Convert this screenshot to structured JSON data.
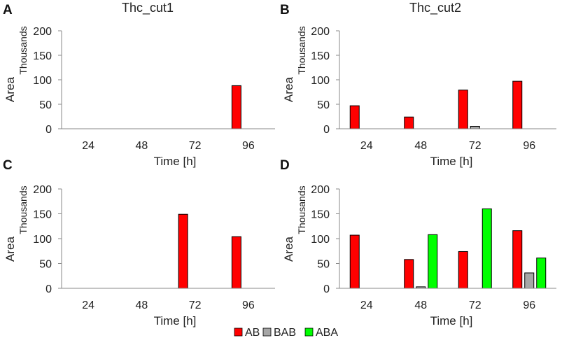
{
  "chart_data": [
    {
      "panel": "A",
      "title": "Thc_cut1",
      "type": "bar",
      "xlabel": "Time [h]",
      "ylabel": "Area",
      "yunit": "Thousands",
      "categories": [
        "24",
        "48",
        "72",
        "96"
      ],
      "ylim": [
        0,
        200
      ],
      "yticks": [
        "0",
        "50",
        "100",
        "150",
        "200"
      ],
      "series": [
        {
          "name": "AB",
          "values": [
            0,
            0,
            0,
            88
          ]
        },
        {
          "name": "BAB",
          "values": [
            0,
            0,
            0,
            0
          ]
        },
        {
          "name": "ABA",
          "values": [
            0,
            0,
            0,
            0
          ]
        }
      ]
    },
    {
      "panel": "B",
      "title": "Thc_cut2",
      "type": "bar",
      "xlabel": "Time [h]",
      "ylabel": "Area",
      "yunit": "Thousands",
      "categories": [
        "24",
        "48",
        "72",
        "96"
      ],
      "ylim": [
        0,
        200
      ],
      "yticks": [
        "0",
        "50",
        "100",
        "150",
        "200"
      ],
      "series": [
        {
          "name": "AB",
          "values": [
            47,
            24,
            79,
            97
          ]
        },
        {
          "name": "BAB",
          "values": [
            0,
            0,
            5,
            0
          ]
        },
        {
          "name": "ABA",
          "values": [
            0,
            0,
            0,
            0
          ]
        }
      ]
    },
    {
      "panel": "C",
      "title": "",
      "type": "bar",
      "xlabel": "Time [h]",
      "ylabel": "Area",
      "yunit": "Thousands",
      "categories": [
        "24",
        "48",
        "72",
        "96"
      ],
      "ylim": [
        0,
        200
      ],
      "yticks": [
        "0",
        "50",
        "100",
        "150",
        "200"
      ],
      "series": [
        {
          "name": "AB",
          "values": [
            0,
            0,
            149,
            104
          ]
        },
        {
          "name": "BAB",
          "values": [
            0,
            0,
            0,
            0
          ]
        },
        {
          "name": "ABA",
          "values": [
            0,
            0,
            0,
            0
          ]
        }
      ]
    },
    {
      "panel": "D",
      "title": "",
      "type": "bar",
      "xlabel": "Time [h]",
      "ylabel": "Area",
      "yunit": "Thousands",
      "categories": [
        "24",
        "48",
        "72",
        "96"
      ],
      "ylim": [
        0,
        200
      ],
      "yticks": [
        "0",
        "50",
        "100",
        "150",
        "200"
      ],
      "series": [
        {
          "name": "AB",
          "values": [
            107,
            58,
            74,
            116
          ]
        },
        {
          "name": "BAB",
          "values": [
            0,
            3,
            0,
            31
          ]
        },
        {
          "name": "ABA",
          "values": [
            0,
            108,
            160,
            61
          ]
        }
      ]
    }
  ],
  "legend": {
    "placement": "bottom-center",
    "items": [
      {
        "label": "AB",
        "color": "#ff0000"
      },
      {
        "label": "BAB",
        "color": "#a6a6a6"
      },
      {
        "label": "ABA",
        "color": "#00ff00"
      }
    ]
  }
}
